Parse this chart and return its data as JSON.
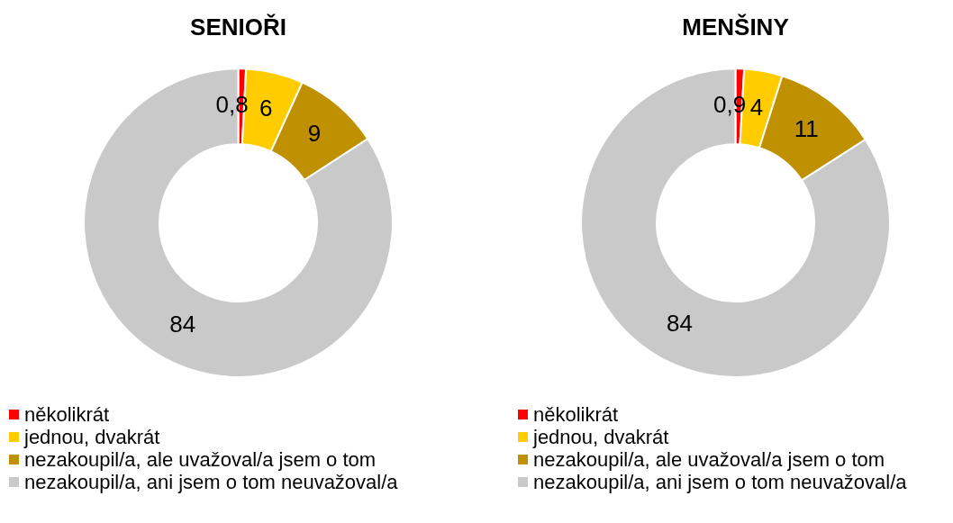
{
  "chart_data": [
    {
      "type": "donut",
      "title": "SENIOŘI",
      "categories": [
        "několikrát",
        "jednou, dvakrát",
        "nezakoupil/a, ale uvažoval/a jsem o tom",
        "nezakoupil/a, ani jsem o tom neuvažoval/a"
      ],
      "values": [
        0.8,
        6,
        9,
        84
      ],
      "value_labels": [
        "0,8",
        "6",
        "9",
        "84"
      ],
      "colors": [
        "#ff0000",
        "#ffcc00",
        "#bf9000",
        "#c9c9c9"
      ],
      "legend": "bottom"
    },
    {
      "type": "donut",
      "title": "MENŠINY",
      "categories": [
        "několikrát",
        "jednou, dvakrát",
        "nezakoupil/a, ale uvažoval/a jsem o tom",
        "nezakoupil/a, ani jsem o tom neuvažoval/a"
      ],
      "values": [
        0.9,
        4,
        11,
        84
      ],
      "value_labels": [
        "0,9",
        "4",
        "11",
        "84"
      ],
      "colors": [
        "#ff0000",
        "#ffcc00",
        "#bf9000",
        "#c9c9c9"
      ],
      "legend": "bottom"
    }
  ]
}
